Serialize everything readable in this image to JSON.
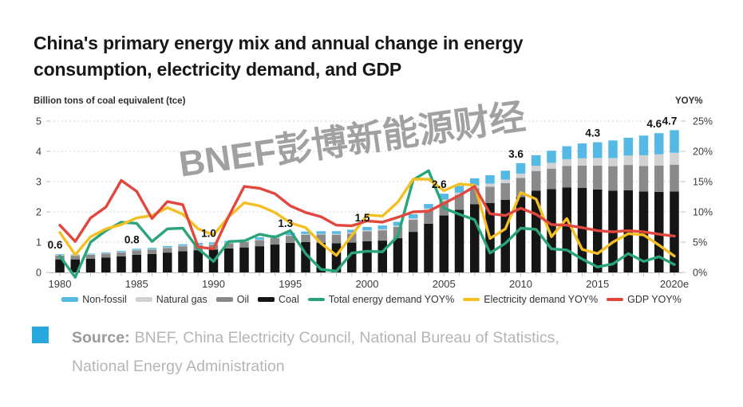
{
  "title": {
    "line1": "China's primary energy mix and annual change in energy",
    "line2": "consumption, electricity demand, and GDP"
  },
  "watermark": "BNEF彭博新能源财经",
  "source": {
    "label": "Source:",
    "line1": "BNEF, China Electricity Council, National Bureau of Statistics,",
    "line2": "National Energy Administration",
    "bullet_color": "#29a8e0"
  },
  "legend": [
    {
      "label": "Non-fossil",
      "color": "#54b9e3",
      "type": "bar"
    },
    {
      "label": "Natural gas",
      "color": "#d2d2d2",
      "type": "bar"
    },
    {
      "label": "Oil",
      "color": "#8a8a8a",
      "type": "bar"
    },
    {
      "label": "Coal",
      "color": "#151515",
      "type": "bar"
    },
    {
      "label": "Total energy demand YOY%",
      "color": "#2aa578",
      "type": "line"
    },
    {
      "label": "Electricity demand YOY%",
      "color": "#f3bf22",
      "type": "line"
    },
    {
      "label": "GDP YOY%",
      "color": "#e2473f",
      "type": "line"
    }
  ],
  "chart_data": {
    "type": "combo_stacked_bar_line",
    "left_axis": {
      "title": "Billion tons of coal equivalent (tce)",
      "ticks": [
        0,
        1,
        2,
        3,
        4,
        5
      ],
      "range": [
        0,
        5
      ]
    },
    "right_axis": {
      "title": "YOY%",
      "ticks": [
        "0%",
        "5%",
        "10%",
        "15%",
        "20%",
        "25%"
      ],
      "range_pct": [
        0,
        25
      ]
    },
    "x": [
      "1980",
      "1981",
      "1982",
      "1983",
      "1984",
      "1985",
      "1986",
      "1987",
      "1988",
      "1989",
      "1990",
      "1991",
      "1992",
      "1993",
      "1994",
      "1995",
      "1996",
      "1997",
      "1998",
      "1999",
      "2000",
      "2001",
      "2002",
      "2003",
      "2004",
      "2005",
      "2006",
      "2007",
      "2008",
      "2009",
      "2010",
      "2011",
      "2012",
      "2013",
      "2014",
      "2015",
      "2016",
      "2017",
      "2018",
      "2019",
      "2020e"
    ],
    "x_tick_labels": [
      "1980",
      "1985",
      "1990",
      "1995",
      "2000",
      "2005",
      "2010",
      "2015",
      "2020e"
    ],
    "stack_series": [
      {
        "name": "Coal",
        "color": "#151515",
        "values": [
          0.43,
          0.43,
          0.455,
          0.487,
          0.527,
          0.585,
          0.608,
          0.655,
          0.7,
          0.733,
          0.75,
          0.79,
          0.825,
          0.865,
          0.92,
          0.978,
          1.0,
          0.98,
          0.965,
          0.985,
          1.03,
          1.05,
          1.13,
          1.34,
          1.61,
          1.88,
          2.07,
          2.25,
          2.29,
          2.4,
          2.49,
          2.7,
          2.75,
          2.81,
          2.79,
          2.74,
          2.7,
          2.71,
          2.67,
          2.66,
          2.67
        ]
      },
      {
        "name": "Oil",
        "color": "#8a8a8a",
        "values": [
          0.13,
          0.12,
          0.125,
          0.13,
          0.136,
          0.145,
          0.148,
          0.155,
          0.165,
          0.17,
          0.165,
          0.172,
          0.182,
          0.2,
          0.21,
          0.229,
          0.245,
          0.27,
          0.28,
          0.3,
          0.33,
          0.34,
          0.37,
          0.4,
          0.45,
          0.46,
          0.49,
          0.53,
          0.54,
          0.55,
          0.63,
          0.65,
          0.68,
          0.71,
          0.74,
          0.79,
          0.81,
          0.84,
          0.85,
          0.87,
          0.89
        ]
      },
      {
        "name": "Natural gas",
        "color": "#d2d2d2",
        "values": [
          0.018,
          0.017,
          0.017,
          0.017,
          0.017,
          0.016,
          0.016,
          0.017,
          0.018,
          0.019,
          0.021,
          0.021,
          0.021,
          0.021,
          0.022,
          0.024,
          0.025,
          0.026,
          0.028,
          0.031,
          0.033,
          0.038,
          0.042,
          0.045,
          0.052,
          0.062,
          0.075,
          0.093,
          0.105,
          0.117,
          0.144,
          0.17,
          0.19,
          0.22,
          0.24,
          0.25,
          0.27,
          0.31,
          0.35,
          0.37,
          0.395
        ]
      },
      {
        "name": "Non-fossil",
        "color": "#54b9e3",
        "values": [
          0.022,
          0.023,
          0.023,
          0.026,
          0.03,
          0.034,
          0.038,
          0.043,
          0.047,
          0.048,
          0.054,
          0.057,
          0.062,
          0.074,
          0.078,
          0.079,
          0.08,
          0.084,
          0.087,
          0.094,
          0.107,
          0.122,
          0.128,
          0.135,
          0.148,
          0.198,
          0.225,
          0.237,
          0.275,
          0.293,
          0.346,
          0.35,
          0.4,
          0.43,
          0.49,
          0.52,
          0.58,
          0.59,
          0.65,
          0.7,
          0.745
        ]
      }
    ],
    "line_series": [
      {
        "name": "Total energy demand YOY%",
        "color": "#2aa578",
        "values_pct": [
          2.7,
          -0.8,
          5.0,
          6.9,
          8.3,
          8.1,
          5.1,
          7.2,
          7.3,
          3.9,
          1.8,
          5.1,
          5.2,
          6.3,
          5.8,
          6.9,
          3.1,
          0.5,
          0.2,
          3.2,
          3.5,
          3.4,
          6.0,
          15.3,
          16.8,
          10.6,
          9.6,
          8.7,
          3.2,
          4.8,
          7.3,
          7.1,
          3.9,
          3.7,
          2.2,
          0.9,
          1.4,
          3.1,
          1.8,
          2.6,
          1.3
        ]
      },
      {
        "name": "Electricity demand YOY%",
        "color": "#f3bf22",
        "values_pct": [
          6.6,
          2.9,
          5.9,
          7.2,
          7.9,
          9.0,
          9.4,
          10.7,
          9.6,
          7.2,
          6.2,
          9.2,
          11.5,
          11.0,
          9.9,
          8.2,
          7.4,
          4.8,
          2.8,
          6.1,
          9.5,
          9.3,
          11.6,
          15.4,
          15.4,
          13.5,
          14.6,
          14.4,
          5.6,
          7.2,
          13.2,
          12.1,
          5.9,
          8.9,
          3.8,
          3.1,
          5.0,
          6.4,
          6.2,
          4.5,
          2.7
        ]
      },
      {
        "name": "GDP YOY%",
        "color": "#e2473f",
        "values_pct": [
          7.8,
          5.1,
          9.0,
          10.8,
          15.2,
          13.4,
          8.9,
          11.7,
          11.2,
          4.2,
          3.9,
          9.3,
          14.2,
          13.9,
          13.0,
          11.0,
          9.9,
          9.2,
          7.8,
          7.7,
          8.5,
          8.3,
          9.1,
          10.0,
          10.1,
          11.4,
          12.7,
          14.2,
          9.7,
          9.4,
          10.6,
          9.6,
          7.9,
          7.8,
          7.4,
          6.9,
          6.7,
          6.9,
          6.7,
          6.3,
          6.0
        ]
      }
    ],
    "bar_total_labels": [
      {
        "x": "1980",
        "label": "0.6"
      },
      {
        "x": "1985",
        "label": "0.8"
      },
      {
        "x": "1990",
        "label": "1.0"
      },
      {
        "x": "1995",
        "label": "1.3"
      },
      {
        "x": "2000",
        "label": "1.5"
      },
      {
        "x": "2005",
        "label": "2.6"
      },
      {
        "x": "2010",
        "label": "3.6"
      },
      {
        "x": "2015",
        "label": "4.3"
      },
      {
        "x": "2019",
        "label": "4.6"
      },
      {
        "x": "2020e",
        "label": "4.7"
      }
    ],
    "grid": "horizontal-dashed",
    "legend_position": "bottom",
    "colors": {
      "grid": "#d6d6d6",
      "axis": "#bdbdbd",
      "tick_text": "#3a3a3a",
      "bar_label_text": "#111111"
    }
  }
}
